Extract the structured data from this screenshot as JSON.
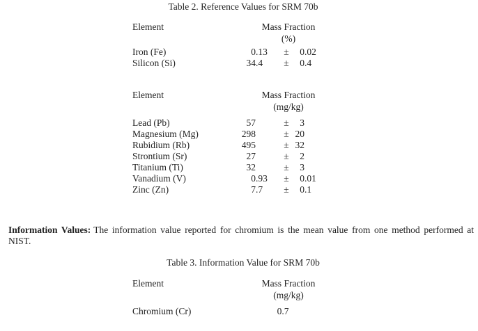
{
  "page": {
    "background": "#ffffff",
    "text_color": "#232323"
  },
  "symbols": {
    "plus_minus": "±"
  },
  "table2": {
    "title": "Table 2. Reference Values for SRM 70b",
    "sections": [
      {
        "columns": {
          "element": "Element",
          "mass_fraction": "Mass Fraction",
          "unit": "(%)"
        },
        "rows": [
          {
            "element": "Iron (Fe)",
            "value": "0.13",
            "uncertainty": "0.02"
          },
          {
            "element": "Silicon (Si)",
            "value": "34.4",
            "uncertainty": "0.4"
          }
        ]
      },
      {
        "columns": {
          "element": "Element",
          "mass_fraction": "Mass Fraction",
          "unit": "(mg/kg)"
        },
        "rows": [
          {
            "element": "Lead (Pb)",
            "value": "57",
            "uncertainty": "3"
          },
          {
            "element": "Magnesium (Mg)",
            "value": "298",
            "uncertainty": "20"
          },
          {
            "element": "Rubidium (Rb)",
            "value": "495",
            "uncertainty": "32"
          },
          {
            "element": "Strontium (Sr)",
            "value": "27",
            "uncertainty": "2"
          },
          {
            "element": "Titanium (Ti)",
            "value": "32",
            "uncertainty": "3"
          },
          {
            "element": "Vanadium (V)",
            "value": "0.93",
            "uncertainty": "0.01"
          },
          {
            "element": "Zinc (Zn)",
            "value": "7.7",
            "uncertainty": "0.1"
          }
        ]
      }
    ]
  },
  "info": {
    "label": "Information Values:",
    "text": "The information value reported for chromium is the mean value from one method performed at NIST."
  },
  "table3": {
    "title": "Table 3. Information Value for SRM 70b",
    "columns": {
      "element": "Element",
      "mass_fraction": "Mass Fraction",
      "unit": "(mg/kg)"
    },
    "rows": [
      {
        "element": "Chromium (Cr)",
        "value": "0.7"
      }
    ]
  }
}
